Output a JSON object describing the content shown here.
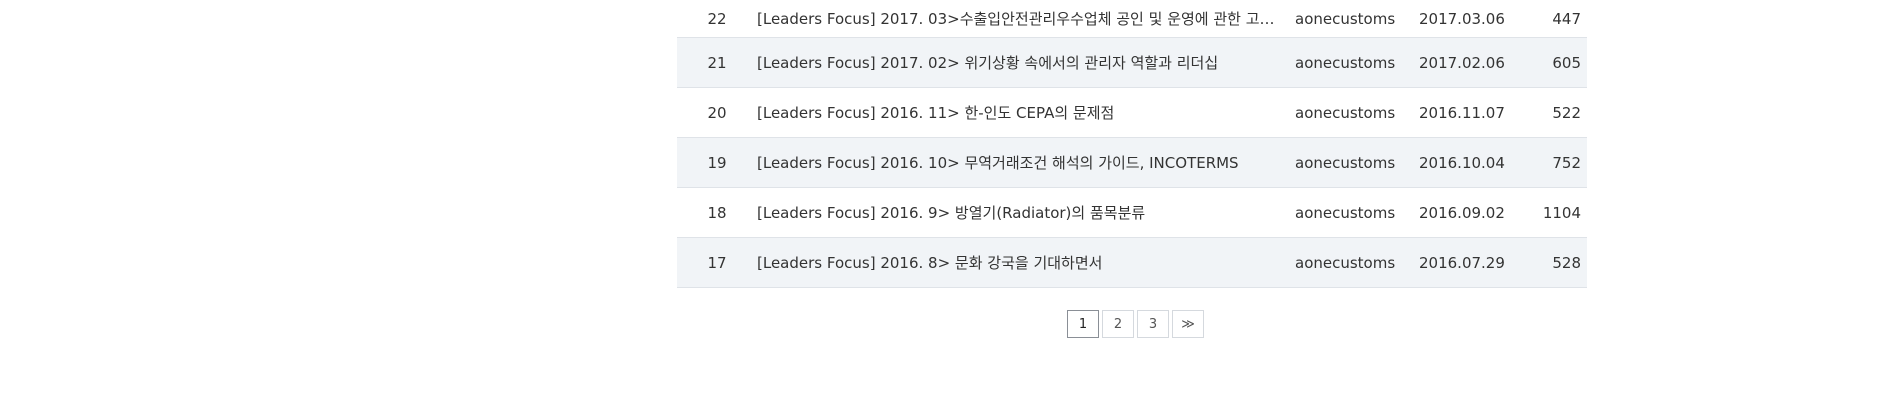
{
  "rows": [
    {
      "no": "22",
      "title": "[Leaders Focus] 2017. 03>수출입안전관리우수업체 공인 및 운영에 관한 고시...",
      "author": "aonecustoms",
      "date": "2017.03.06",
      "views": "447"
    },
    {
      "no": "21",
      "title": "[Leaders Focus] 2017. 02> 위기상황 속에서의 관리자 역할과 리더십",
      "author": "aonecustoms",
      "date": "2017.02.06",
      "views": "605"
    },
    {
      "no": "20",
      "title": "[Leaders Focus] 2016. 11> 한-인도 CEPA의 문제점",
      "author": "aonecustoms",
      "date": "2016.11.07",
      "views": "522"
    },
    {
      "no": "19",
      "title": "[Leaders Focus] 2016. 10> 무역거래조건 해석의 가이드, INCOTERMS",
      "author": "aonecustoms",
      "date": "2016.10.04",
      "views": "752"
    },
    {
      "no": "18",
      "title": "[Leaders Focus] 2016. 9> 방열기(Radiator)의 품목분류",
      "author": "aonecustoms",
      "date": "2016.09.02",
      "views": "1104"
    },
    {
      "no": "17",
      "title": "[Leaders Focus] 2016. 8> 문화 강국을 기대하면서",
      "author": "aonecustoms",
      "date": "2016.07.29",
      "views": "528"
    }
  ],
  "pagination": {
    "pages": [
      "1",
      "2",
      "3"
    ],
    "current": "1",
    "next_label": "≫"
  }
}
